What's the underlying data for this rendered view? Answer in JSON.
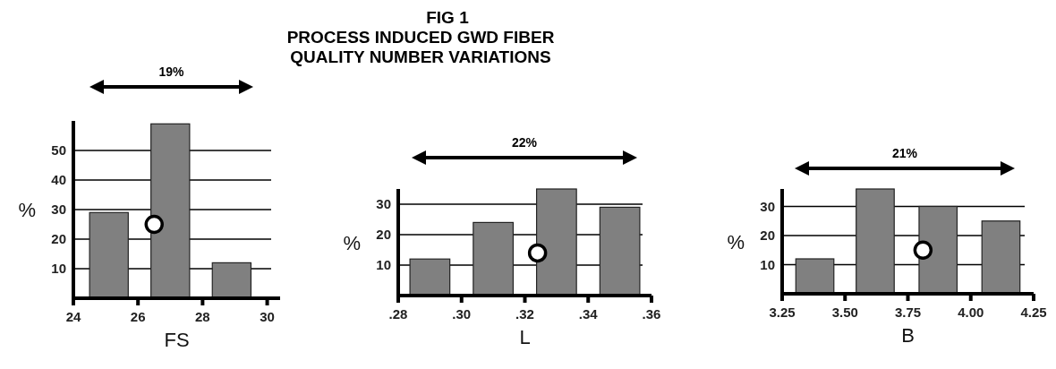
{
  "chart_data": [
    {
      "type": "bar",
      "title": "FIG 1\nPROCESS INDUCED GWD FIBER\nQUALITY NUMBER VARIATIONS",
      "xlabel": "FS",
      "ylabel": "%",
      "annotations": [
        "19%"
      ],
      "series": [
        {
          "color": "#808080",
          "x": [
            25.1,
            27.0,
            28.9
          ],
          "values": [
            29,
            59,
            12
          ]
        },
        {
          "type": "scatter",
          "color": "#ffffff",
          "marker": "circle",
          "x": [
            26.5
          ],
          "values": [
            25
          ]
        }
      ],
      "xlim": [
        24,
        30.4
      ],
      "xticks": [
        24,
        26,
        28,
        30
      ],
      "ylim": [
        0,
        60
      ],
      "yticks": [
        10,
        20,
        30,
        40,
        50
      ],
      "grid": "y"
    },
    {
      "type": "bar",
      "xlabel": "L",
      "ylabel": "%",
      "annotations": [
        "22%"
      ],
      "series": [
        {
          "color": "#808080",
          "x": [
            0.29,
            0.31,
            0.33,
            0.35
          ],
          "values": [
            12,
            24,
            35,
            29
          ]
        },
        {
          "type": "scatter",
          "color": "#ffffff",
          "marker": "circle",
          "x": [
            0.324
          ],
          "values": [
            14
          ]
        }
      ],
      "xlim": [
        0.28,
        0.36
      ],
      "xticks": [
        {
          "value": 0.28,
          "label": ".28"
        },
        {
          "value": 0.3,
          "label": ".30"
        },
        {
          "value": 0.32,
          "label": ".32"
        },
        {
          "value": 0.34,
          "label": ".34"
        },
        {
          "value": 0.36,
          "label": ".36"
        }
      ],
      "ylim": [
        0,
        35
      ],
      "yticks": [
        10,
        20,
        30
      ],
      "grid": "y"
    },
    {
      "type": "bar",
      "xlabel": "B",
      "ylabel": "%",
      "annotations": [
        "21%"
      ],
      "series": [
        {
          "color": "#808080",
          "x": [
            3.38,
            3.62,
            3.87,
            4.12
          ],
          "values": [
            12,
            36,
            30,
            25
          ]
        },
        {
          "type": "scatter",
          "color": "#ffffff",
          "marker": "circle",
          "x": [
            3.81
          ],
          "values": [
            15
          ]
        }
      ],
      "xlim": [
        3.25,
        4.25
      ],
      "xticks": [
        3.25,
        {
          "value": 3.5,
          "label": "3.50"
        },
        3.75,
        {
          "value": 4.0,
          "label": "4.00"
        },
        4.25
      ],
      "ylim": [
        0,
        36
      ],
      "yticks": [
        10,
        20,
        30
      ],
      "grid": "y"
    }
  ]
}
